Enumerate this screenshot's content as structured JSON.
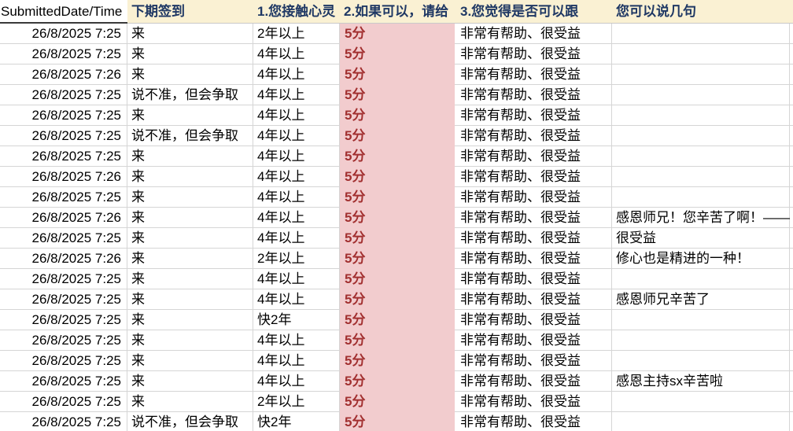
{
  "app": "spreadsheet-survey-results",
  "colors": {
    "header_bg": "#faf1d3",
    "header_text": "#1f3864",
    "date_header_bg": "#ffffff",
    "score_column_bg": "#f2ccce",
    "score_text": "#a23030",
    "gridline": "#d5d5d5",
    "cell_text": "#000000"
  },
  "table": {
    "columns": [
      {
        "key": "date",
        "label": "SubmittedDate/Time"
      },
      {
        "key": "next",
        "label": "下期签到"
      },
      {
        "key": "years",
        "label": "1.您接触心灵"
      },
      {
        "key": "score",
        "label": "2.如果可以，请给"
      },
      {
        "key": "helpful",
        "label": "3.您觉得是否可以跟"
      },
      {
        "key": "comment",
        "label": "您可以说几句"
      }
    ],
    "rows": [
      {
        "date": "26/8/2025 7:25",
        "next": "来",
        "years": "2年以上",
        "score": "5分",
        "helpful": "非常有帮助、很受益",
        "comment": ""
      },
      {
        "date": "26/8/2025 7:25",
        "next": "来",
        "years": "4年以上",
        "score": "5分",
        "helpful": "非常有帮助、很受益",
        "comment": ""
      },
      {
        "date": "26/8/2025 7:26",
        "next": "来",
        "years": "4年以上",
        "score": "5分",
        "helpful": "非常有帮助、很受益",
        "comment": ""
      },
      {
        "date": "26/8/2025 7:25",
        "next": "说不准，但会争取",
        "years": "4年以上",
        "score": "5分",
        "helpful": "非常有帮助、很受益",
        "comment": ""
      },
      {
        "date": "26/8/2025 7:25",
        "next": "来",
        "years": "4年以上",
        "score": "5分",
        "helpful": "非常有帮助、很受益",
        "comment": ""
      },
      {
        "date": "26/8/2025 7:25",
        "next": "说不准，但会争取",
        "years": "4年以上",
        "score": "5分",
        "helpful": "非常有帮助、很受益",
        "comment": ""
      },
      {
        "date": "26/8/2025 7:25",
        "next": "来",
        "years": "4年以上",
        "score": "5分",
        "helpful": "非常有帮助、很受益",
        "comment": ""
      },
      {
        "date": "26/8/2025 7:26",
        "next": "来",
        "years": "4年以上",
        "score": "5分",
        "helpful": "非常有帮助、很受益",
        "comment": ""
      },
      {
        "date": "26/8/2025 7:25",
        "next": "来",
        "years": "4年以上",
        "score": "5分",
        "helpful": "非常有帮助、很受益",
        "comment": ""
      },
      {
        "date": "26/8/2025 7:26",
        "next": "来",
        "years": "4年以上",
        "score": "5分",
        "helpful": "非常有帮助、很受益",
        "comment": "感恩师兄！您辛苦了啊！——"
      },
      {
        "date": "26/8/2025 7:25",
        "next": "来",
        "years": "4年以上",
        "score": "5分",
        "helpful": "非常有帮助、很受益",
        "comment": "很受益"
      },
      {
        "date": "26/8/2025 7:26",
        "next": "来",
        "years": "2年以上",
        "score": "5分",
        "helpful": "非常有帮助、很受益",
        "comment": "修心也是精进的一种！"
      },
      {
        "date": "26/8/2025 7:25",
        "next": "来",
        "years": "4年以上",
        "score": "5分",
        "helpful": "非常有帮助、很受益",
        "comment": ""
      },
      {
        "date": "26/8/2025 7:25",
        "next": "来",
        "years": "4年以上",
        "score": "5分",
        "helpful": "非常有帮助、很受益",
        "comment": "感恩师兄辛苦了"
      },
      {
        "date": "26/8/2025 7:25",
        "next": "来",
        "years": "快2年",
        "score": "5分",
        "helpful": "非常有帮助、很受益",
        "comment": ""
      },
      {
        "date": "26/8/2025 7:25",
        "next": "来",
        "years": "4年以上",
        "score": "5分",
        "helpful": "非常有帮助、很受益",
        "comment": ""
      },
      {
        "date": "26/8/2025 7:25",
        "next": "来",
        "years": "4年以上",
        "score": "5分",
        "helpful": "非常有帮助、很受益",
        "comment": ""
      },
      {
        "date": "26/8/2025 7:25",
        "next": "来",
        "years": "4年以上",
        "score": "5分",
        "helpful": "非常有帮助、很受益",
        "comment": "感恩主持sx辛苦啦"
      },
      {
        "date": "26/8/2025 7:25",
        "next": "来",
        "years": "2年以上",
        "score": "5分",
        "helpful": "非常有帮助、很受益",
        "comment": ""
      },
      {
        "date": "26/8/2025 7:25",
        "next": "说不准，但会争取",
        "years": "快2年",
        "score": "5分",
        "helpful": "非常有帮助、很受益",
        "comment": ""
      }
    ]
  }
}
